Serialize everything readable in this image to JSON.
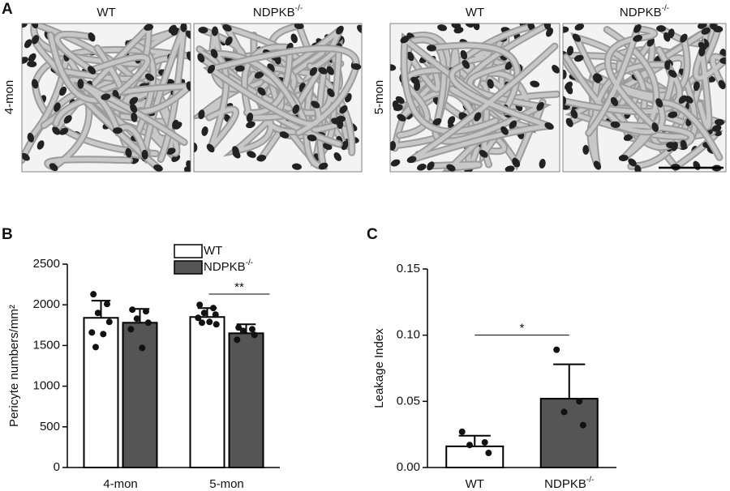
{
  "panel_a": {
    "panel_label": "A",
    "groups": [
      {
        "row_label": "4-mon",
        "columns": [
          {
            "label": "WT",
            "sup": null
          },
          {
            "label": "NDPKB",
            "sup": "-/-"
          }
        ]
      },
      {
        "row_label": "5-mon",
        "columns": [
          {
            "label": "WT",
            "sup": null
          },
          {
            "label": "NDPKB",
            "sup": "-/-"
          }
        ]
      }
    ]
  },
  "chart_data": [
    {
      "type": "bar",
      "panel_label": "B",
      "y_label": "Pericyte numbers/mm²",
      "categories": [
        "4-mon",
        "5-mon"
      ],
      "series": [
        {
          "name": "WT",
          "name_sup": null,
          "color": "#ffffff",
          "values": [
            1840,
            1850
          ],
          "errors": [
            210,
            110
          ],
          "points": [
            [
              2130,
              2010,
              1900,
              1790,
              1660,
              1640,
              1480
            ],
            [
              2000,
              1960,
              1900,
              1880,
              1840,
              1790,
              1780,
              1760
            ]
          ]
        },
        {
          "name": "NDPKB",
          "name_sup": "-/-",
          "color": "#555555",
          "values": [
            1780,
            1650
          ],
          "errors": [
            170,
            110
          ],
          "points": [
            [
              1940,
              1920,
              1830,
              1780,
              1700,
              1470
            ],
            [
              1720,
              1700,
              1680,
              1630,
              1570
            ]
          ]
        }
      ],
      "ylim": [
        0,
        2500
      ],
      "yticks": [
        0,
        500,
        1000,
        1500,
        2000,
        2500
      ],
      "legend": "top",
      "significance": [
        {
          "label": "**",
          "category": 1
        }
      ]
    },
    {
      "type": "bar",
      "panel_label": "C",
      "y_label": "Leakage Index",
      "categories": [
        "WT",
        "NDPKB"
      ],
      "category_sups": [
        null,
        "-/-"
      ],
      "colors": [
        "#ffffff",
        "#555555"
      ],
      "values": [
        0.016,
        0.052
      ],
      "errors": [
        0.008,
        0.026
      ],
      "points": [
        [
          0.027,
          0.019,
          0.017,
          0.011
        ],
        [
          0.089,
          0.05,
          0.042,
          0.032
        ]
      ],
      "ylim": [
        0,
        0.15
      ],
      "yticks": [
        {
          "value": 0,
          "label": "0.00"
        },
        {
          "value": 0.05,
          "label": "0.05"
        },
        {
          "value": 0.1,
          "label": "0.10"
        },
        {
          "value": 0.15,
          "label": "0.15"
        }
      ],
      "significance": [
        {
          "label": "*",
          "category": null
        }
      ]
    }
  ]
}
